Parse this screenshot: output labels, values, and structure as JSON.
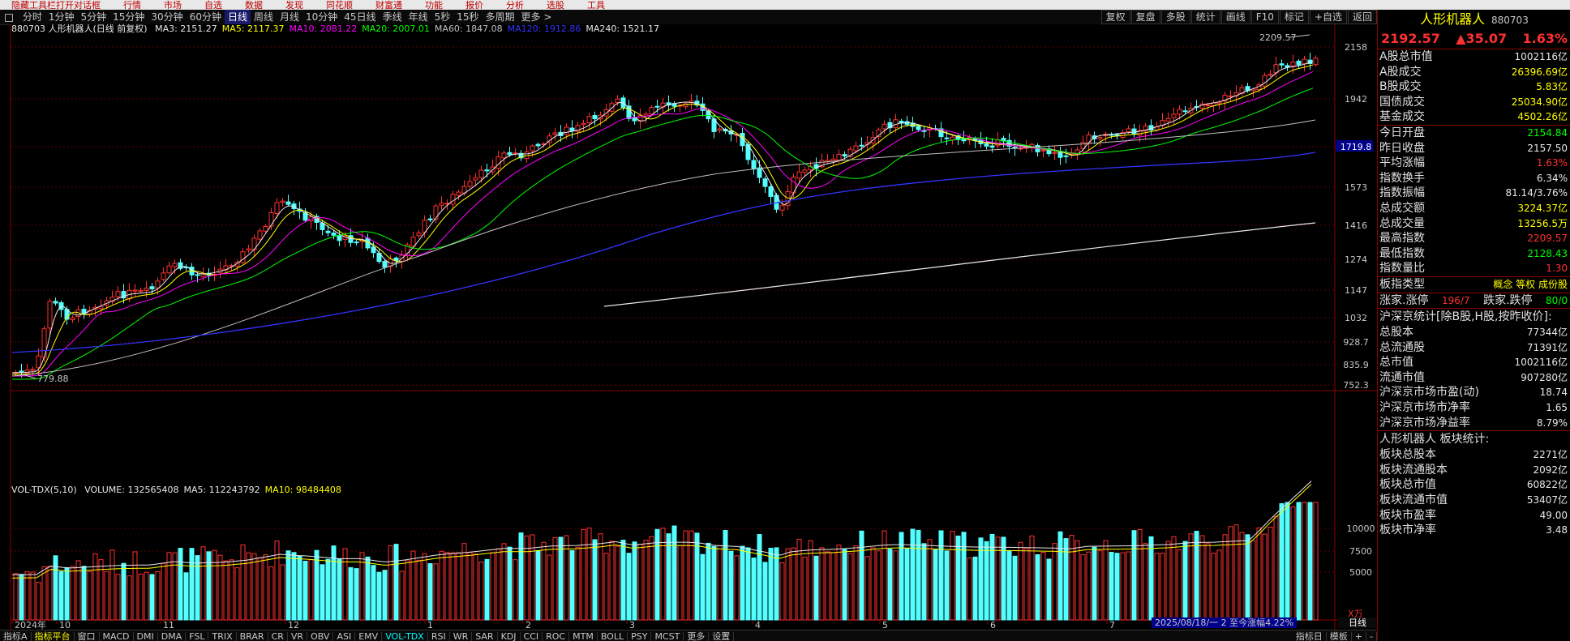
{
  "top_menu": [
    "隐藏工具栏打开对话框",
    "行情",
    "市场",
    "自选",
    "数据",
    "发现",
    "同花顺",
    "财富通",
    "功能",
    "报价",
    "分析",
    "选股",
    "工具"
  ],
  "period_tabs": [
    "分时",
    "1分钟",
    "5分钟",
    "15分钟",
    "30分钟",
    "60分钟",
    "日线",
    "周线",
    "月线",
    "10分钟",
    "45日线",
    "季线",
    "年线",
    "5秒",
    "15秒",
    "多周期",
    "更多 >"
  ],
  "active_period": "日线",
  "right_tools": [
    "复权",
    "复盘",
    "多股",
    "统计",
    "画线",
    "F10",
    "标记",
    "+自选",
    "返回"
  ],
  "main_legend": {
    "title": "880703 人形机器人(日线 前复权)",
    "items": [
      {
        "label": "MA3: 2151.27",
        "color": "#e8e8e8"
      },
      {
        "label": "MA5: 2117.37",
        "color": "#ffff00"
      },
      {
        "label": "MA10: 2081.22",
        "color": "#ff00ff"
      },
      {
        "label": "MA20: 2007.01",
        "color": "#00ff00"
      },
      {
        "label": "MA60: 1847.08",
        "color": "#c0c0c0"
      },
      {
        "label": "MA120: 1912.86",
        "color": "#3333ff"
      },
      {
        "label": "MA240: 1521.17",
        "color": "#e8e8e8"
      }
    ]
  },
  "vol_legend": {
    "title": "VOL-TDX(5,10)",
    "items": [
      {
        "label": "VOLUME: 132565408",
        "color": "#e8e8e8"
      },
      {
        "label": "MA5: 112243792",
        "color": "#e8e8e8"
      },
      {
        "label": "MA10: 98484408",
        "color": "#ffff00"
      }
    ]
  },
  "price_axis": [
    "2158",
    "1942",
    "1719.8",
    "1573",
    "1416",
    "1274",
    "1147",
    "1032",
    "928.7",
    "835.9",
    "752.3"
  ],
  "volume_axis": [
    "10000",
    "7500",
    "5000"
  ],
  "volume_unit": "X万",
  "high_label": "2209.57",
  "low_label": "779.88",
  "date_labels": [
    "2024年",
    "10",
    "11",
    "12",
    "1",
    "2",
    "3",
    "4",
    "5",
    "6",
    "7"
  ],
  "interval_info": "2025/08/18/一 2 至今涨幅4.22%",
  "bottom_tabs": [
    "指标A",
    "指标平台",
    "窗口",
    "MACD",
    "DMI",
    "DMA",
    "FSL",
    "TRIX",
    "BRAR",
    "CR",
    "VR",
    "OBV",
    "ASI",
    "EMV",
    "VOL-TDX",
    "RSI",
    "WR",
    "SAR",
    "KDJ",
    "CCI",
    "ROC",
    "MTM",
    "BOLL",
    "PSY",
    "MCST",
    "更多",
    "设置"
  ],
  "bottom_right_tabs": [
    "指标日",
    "模板",
    "+",
    "-"
  ],
  "period_badge": "日线",
  "panel": {
    "name": "人形机器人",
    "code": "880703",
    "price": "2192.57",
    "change": "▲35.07",
    "change_pct": "1.63%",
    "market": [
      {
        "label": "A股总市值",
        "value": "1002116亿",
        "color": "white"
      },
      {
        "label": "A股成交",
        "value": "26396.69亿",
        "color": "yellow"
      },
      {
        "label": "B股成交",
        "value": "5.83亿",
        "color": "yellow"
      },
      {
        "label": "国债成交",
        "value": "25034.90亿",
        "color": "yellow"
      },
      {
        "label": "基金成交",
        "value": "4502.26亿",
        "color": "yellow"
      }
    ],
    "quote": [
      {
        "label": "今日开盘",
        "value": "2154.84",
        "color": "green"
      },
      {
        "label": "昨日收盘",
        "value": "2157.50",
        "color": "white"
      },
      {
        "label": "平均涨幅",
        "value": "1.63%",
        "color": "red"
      },
      {
        "label": "指数换手",
        "value": "6.34%",
        "color": "white"
      },
      {
        "label": "指数振幅",
        "value": "81.14/3.76%",
        "color": "white"
      },
      {
        "label": "总成交额",
        "value": "3224.37亿",
        "color": "yellow"
      },
      {
        "label": "总成交量",
        "value": "13256.5万",
        "color": "yellow"
      },
      {
        "label": "最高指数",
        "value": "2209.57",
        "color": "red"
      },
      {
        "label": "最低指数",
        "value": "2128.43",
        "color": "green"
      },
      {
        "label": "指数量比",
        "value": "1.30",
        "color": "red"
      }
    ],
    "type_row": {
      "label": "板指类型",
      "value": "概念 等权 成份股",
      "color": "yellow"
    },
    "updown": {
      "label1": "涨家.涨停",
      "value1": "196/7",
      "label2": "跌家.跌停",
      "value2": "80/0"
    },
    "stats_title": "沪深京统计[除B股,H股,按昨收价]:",
    "stats": [
      {
        "label": "总股本",
        "value": "77344亿",
        "color": "white"
      },
      {
        "label": "总流通股",
        "value": "71391亿",
        "color": "white"
      },
      {
        "label": "总市值",
        "value": "1002116亿",
        "color": "white"
      },
      {
        "label": "流通市值",
        "value": "907280亿",
        "color": "white"
      },
      {
        "label": "沪深京市场市盈(动)",
        "value": "18.74",
        "color": "white"
      },
      {
        "label": "沪深京市场市净率",
        "value": "1.65",
        "color": "white"
      },
      {
        "label": "沪深京市场净益率",
        "value": "8.79%",
        "color": "white"
      }
    ],
    "block_title": "人形机器人 板块统计:",
    "block": [
      {
        "label": "板块总股本",
        "value": "2271亿",
        "color": "white"
      },
      {
        "label": "板块流通股本",
        "value": "2092亿",
        "color": "white"
      },
      {
        "label": "板块总市值",
        "value": "60822亿",
        "color": "white"
      },
      {
        "label": "板块流通市值",
        "value": "53407亿",
        "color": "white"
      },
      {
        "label": "板块市盈率",
        "value": "49.00",
        "color": "white"
      },
      {
        "label": "板块市净率",
        "value": "3.48",
        "color": "white"
      }
    ]
  }
}
